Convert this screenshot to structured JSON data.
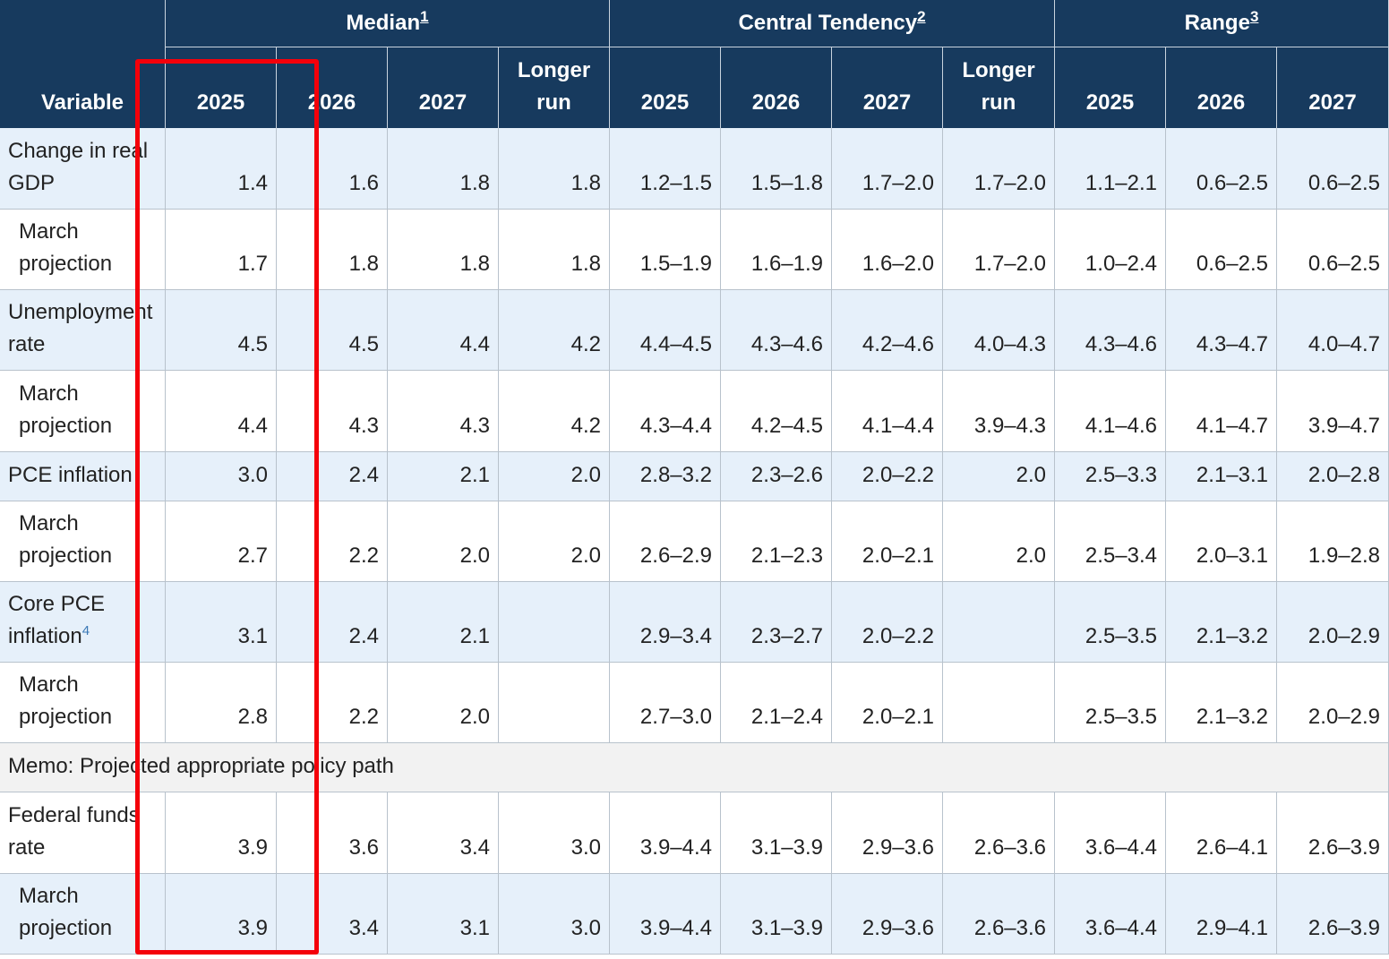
{
  "table": {
    "variable_header": "Variable",
    "groups": [
      {
        "label": "Median",
        "footnote": "1",
        "columns": [
          "2025",
          "2026",
          "2027",
          "Longer run"
        ]
      },
      {
        "label": "Central Tendency",
        "footnote": "2",
        "columns": [
          "2025",
          "2026",
          "2027",
          "Longer run"
        ]
      },
      {
        "label": "Range",
        "footnote": "3",
        "columns": [
          "2025",
          "2026",
          "2027"
        ]
      }
    ],
    "rows": [
      {
        "label": "Change in real GDP",
        "values": [
          "1.4",
          "1.6",
          "1.8",
          "1.8",
          "1.2–1.5",
          "1.5–1.8",
          "1.7–2.0",
          "1.7–2.0",
          "1.1–2.1",
          "0.6–2.5",
          "0.6–2.5"
        ]
      },
      {
        "label": "March projection",
        "values": [
          "1.7",
          "1.8",
          "1.8",
          "1.8",
          "1.5–1.9",
          "1.6–1.9",
          "1.6–2.0",
          "1.7–2.0",
          "1.0–2.4",
          "0.6–2.5",
          "0.6–2.5"
        ]
      },
      {
        "label": "Unemployment rate",
        "values": [
          "4.5",
          "4.5",
          "4.4",
          "4.2",
          "4.4–4.5",
          "4.3–4.6",
          "4.2–4.6",
          "4.0–4.3",
          "4.3–4.6",
          "4.3–4.7",
          "4.0–4.7"
        ]
      },
      {
        "label": "March projection",
        "values": [
          "4.4",
          "4.3",
          "4.3",
          "4.2",
          "4.3–4.4",
          "4.2–4.5",
          "4.1–4.4",
          "3.9–4.3",
          "4.1–4.6",
          "4.1–4.7",
          "3.9–4.7"
        ]
      },
      {
        "label": "PCE inflation",
        "values": [
          "3.0",
          "2.4",
          "2.1",
          "2.0",
          "2.8–3.2",
          "2.3–2.6",
          "2.0–2.2",
          "2.0",
          "2.5–3.3",
          "2.1–3.1",
          "2.0–2.8"
        ]
      },
      {
        "label": "March projection",
        "values": [
          "2.7",
          "2.2",
          "2.0",
          "2.0",
          "2.6–2.9",
          "2.1–2.3",
          "2.0–2.1",
          "2.0",
          "2.5–3.4",
          "2.0–3.1",
          "1.9–2.8"
        ]
      },
      {
        "label": "Core PCE inflation",
        "footnote": "4",
        "values": [
          "3.1",
          "2.4",
          "2.1",
          null,
          "2.9–3.4",
          "2.3–2.7",
          "2.0–2.2",
          null,
          "2.5–3.5",
          "2.1–3.2",
          "2.0–2.9"
        ]
      },
      {
        "label": "March projection",
        "values": [
          "2.8",
          "2.2",
          "2.0",
          null,
          "2.7–3.0",
          "2.1–2.4",
          "2.0–2.1",
          null,
          "2.5–3.5",
          "2.1–3.2",
          "2.0–2.9"
        ]
      }
    ],
    "memo": "Memo: Projected appropriate policy path",
    "memo_rows": [
      {
        "label": "Federal funds rate",
        "values": [
          "3.9",
          "3.6",
          "3.4",
          "3.0",
          "3.9–4.4",
          "3.1–3.9",
          "2.9–3.6",
          "2.6–3.6",
          "3.6–4.4",
          "2.6–4.1",
          "2.6–3.9"
        ]
      },
      {
        "label": "March projection",
        "values": [
          "3.9",
          "3.4",
          "3.1",
          "3.0",
          "3.9–4.4",
          "3.1–3.9",
          "2.9–3.6",
          "2.6–3.6",
          "3.6–4.4",
          "2.9–4.1",
          "2.6–3.9"
        ]
      }
    ]
  }
}
